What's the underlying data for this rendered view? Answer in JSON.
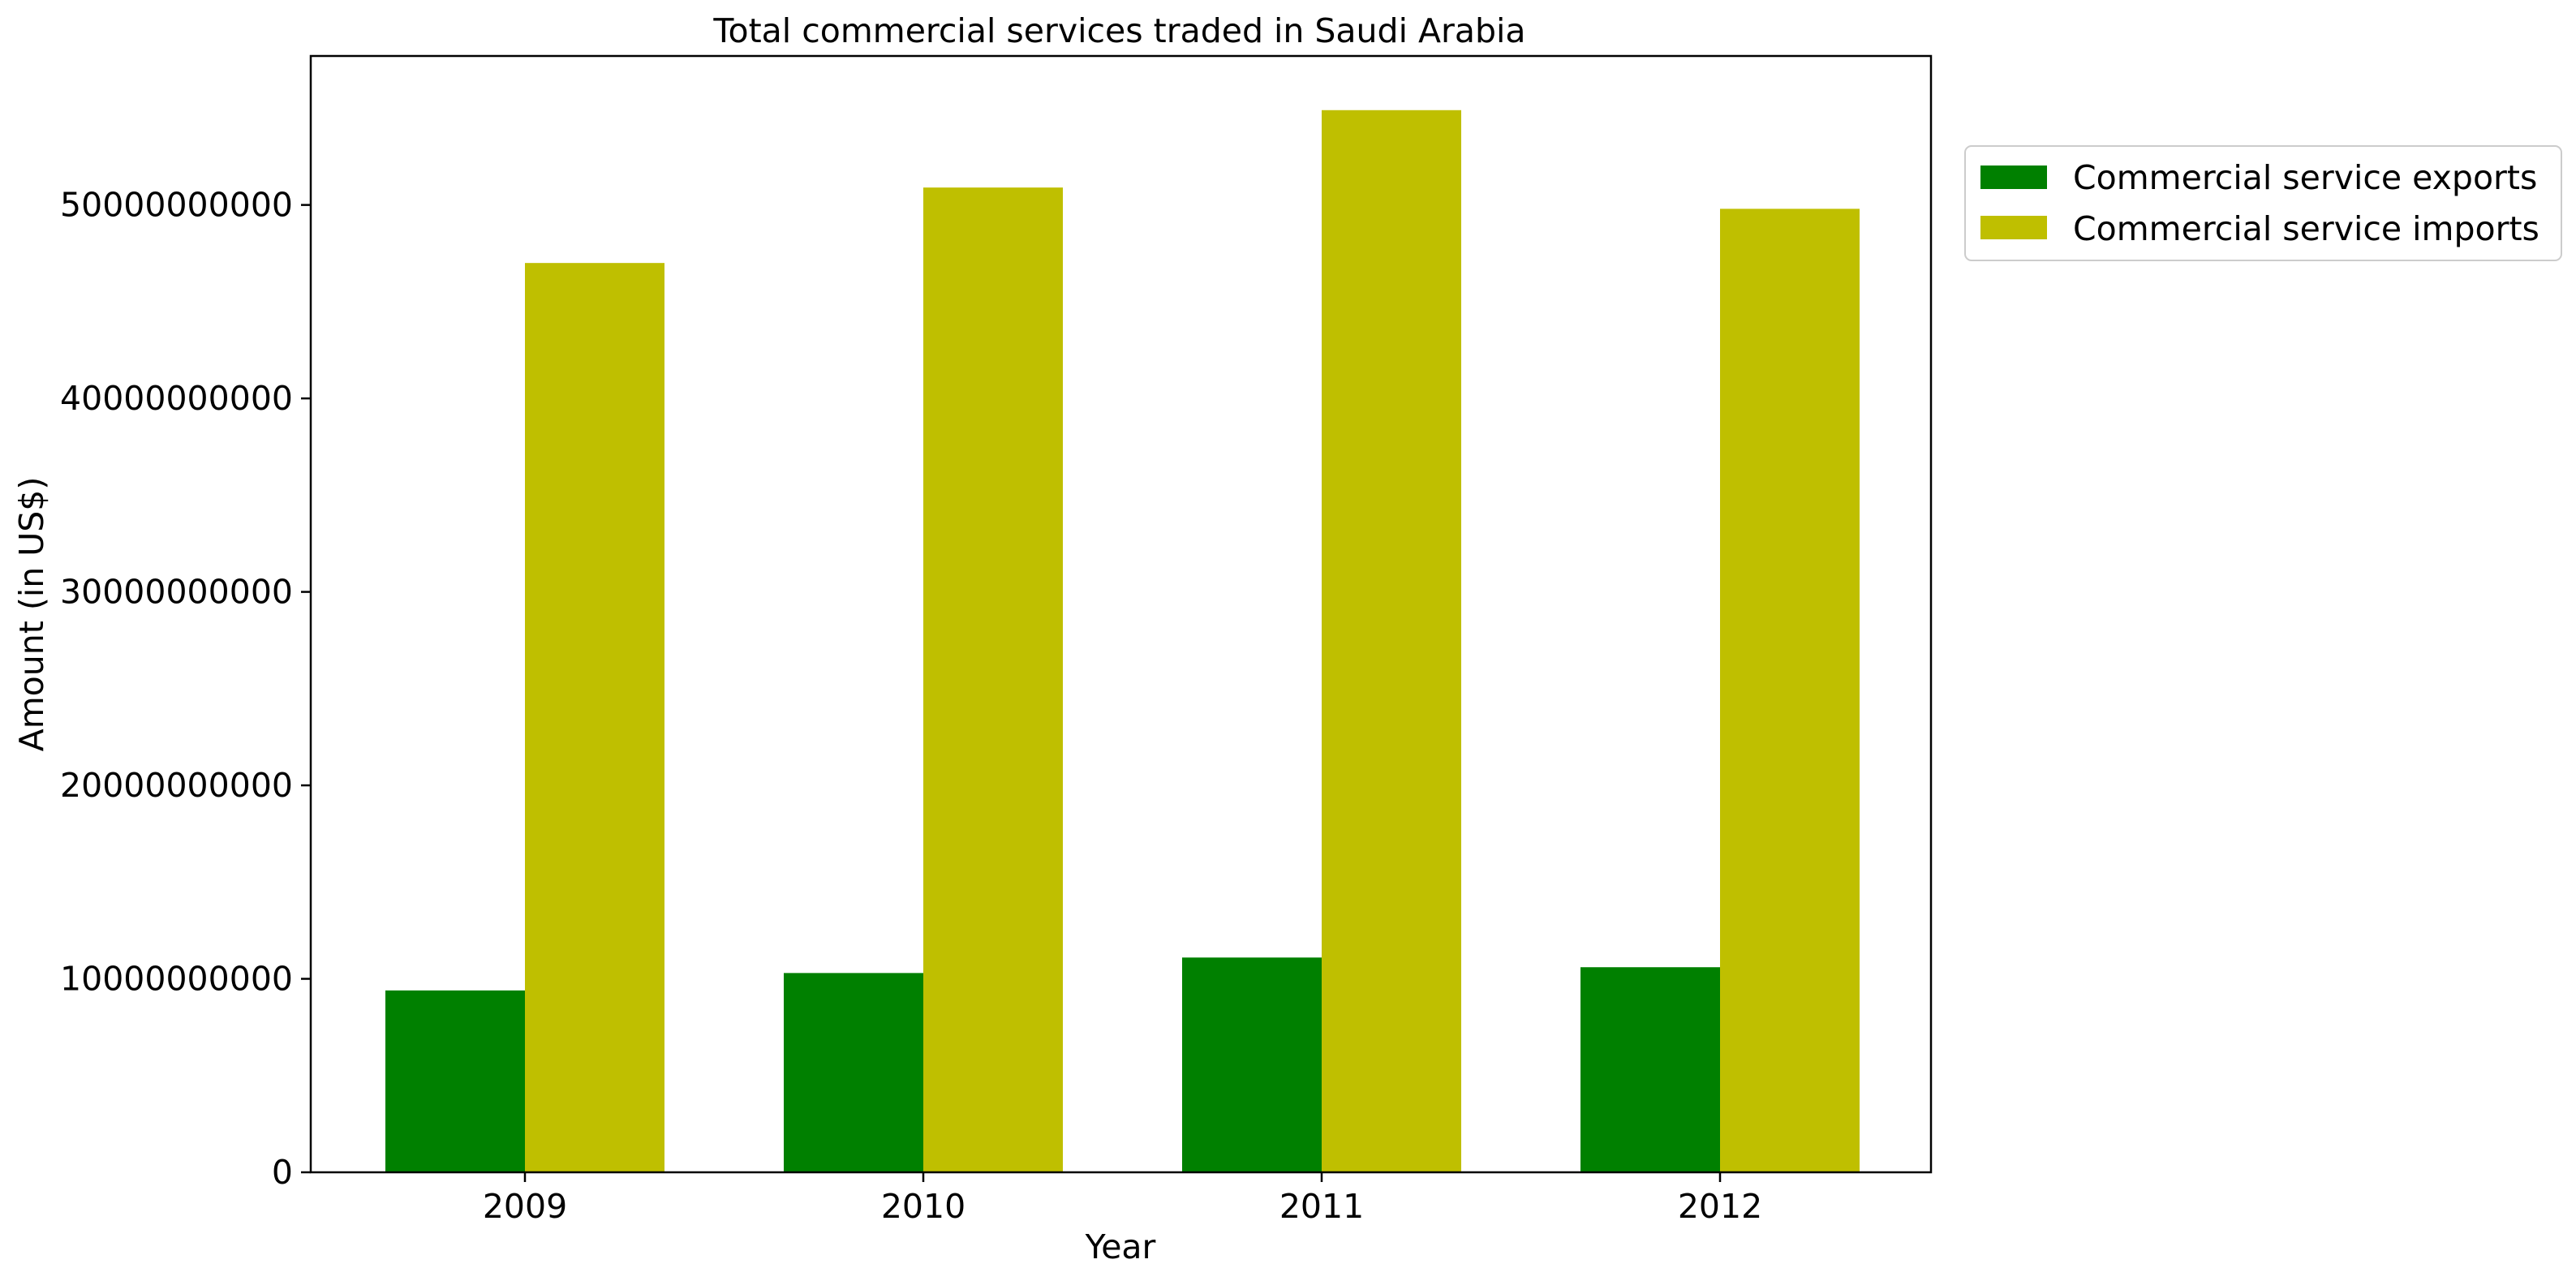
{
  "chart_data": {
    "type": "bar",
    "title": "Total commercial services traded in Saudi Arabia",
    "xlabel": "Year",
    "ylabel": "Amount (in US$)",
    "categories": [
      "2009",
      "2010",
      "2011",
      "2012"
    ],
    "series": [
      {
        "name": "Commercial service exports",
        "color": "#008000",
        "values": [
          9400000000,
          10300000000,
          11100000000,
          10600000000
        ]
      },
      {
        "name": "Commercial service imports",
        "color": "#bfbf00",
        "values": [
          47000000000,
          50900000000,
          54900000000,
          49800000000
        ]
      }
    ],
    "yticks": [
      0,
      10000000000,
      20000000000,
      30000000000,
      40000000000,
      50000000000
    ],
    "ytick_labels": [
      "0",
      "10000000000",
      "20000000000",
      "30000000000",
      "40000000000",
      "50000000000"
    ],
    "ylim": [
      0,
      57700000000
    ],
    "grid": false,
    "legend_position": "outside-top-right"
  }
}
